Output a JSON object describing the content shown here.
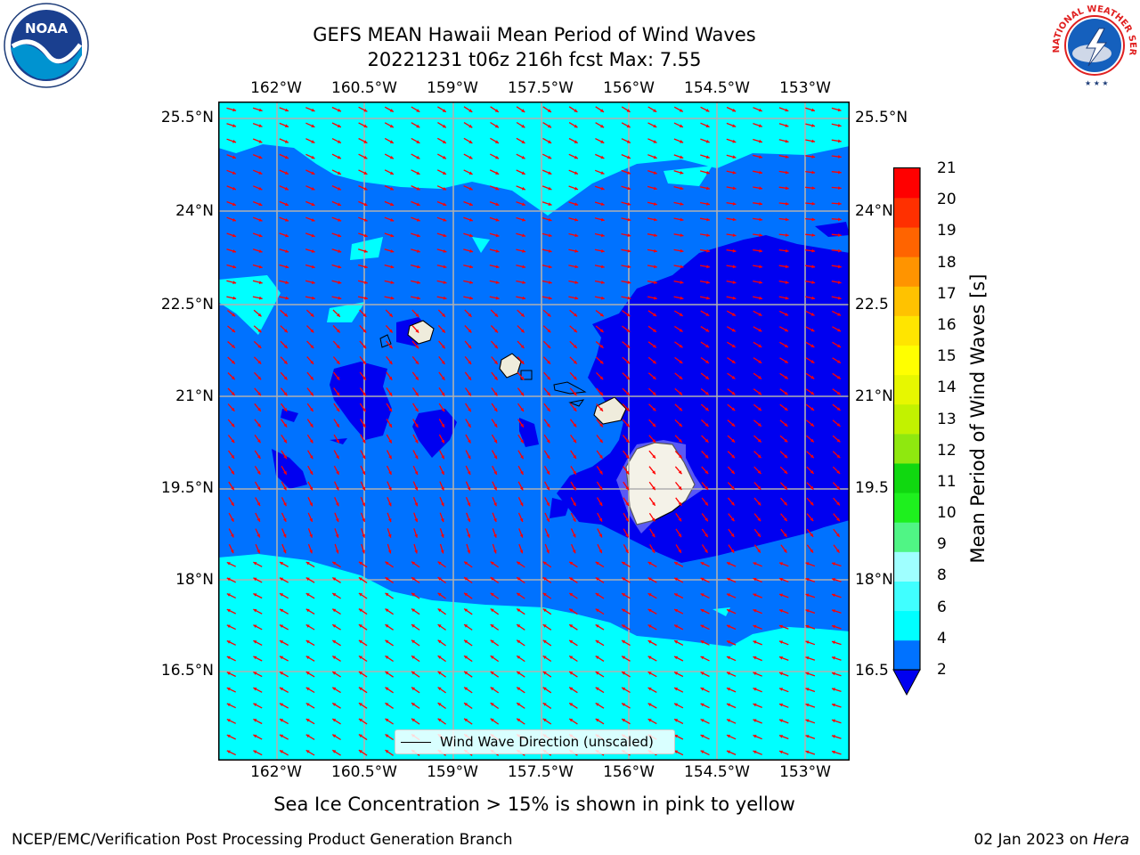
{
  "title": {
    "line1": "GEFS MEAN Hawaii Mean Period of Wind Waves",
    "line2": "20221231 t06z 216h fcst   Max: 7.55"
  },
  "map": {
    "lon_ticks": [
      "162°W",
      "160.5°W",
      "159°W",
      "157.5°W",
      "156°W",
      "154.5°W",
      "153°W"
    ],
    "lat_ticks_left": [
      "25.5°N",
      "24°N",
      "22.5°N",
      "21°N",
      "19.5°N",
      "18°N",
      "16.5°N"
    ],
    "lat_ticks_right": [
      "25.5°N",
      "24°N",
      "22.5",
      "21°N",
      "19.5",
      "18°N",
      "16.5"
    ],
    "legend_label": "Wind Wave Direction (unscaled)",
    "colors": {
      "level_2_4": "#0072ff",
      "level_lt_2": "#0000f0",
      "level_4_6": "#00ffff",
      "land": "#efecdc",
      "arrows": "#ff0000",
      "grid": "#b0b0b0"
    }
  },
  "colorbar": {
    "label": "Mean Period of Wind Waves [s]",
    "ticks": [
      "2",
      "4",
      "6",
      "8",
      "9",
      "10",
      "11",
      "12",
      "13",
      "14",
      "15",
      "16",
      "17",
      "18",
      "19",
      "20",
      "21"
    ],
    "colors": [
      "#0072ff",
      "#00ffff",
      "#40ffff",
      "#9fffff",
      "#50f585",
      "#1ef01e",
      "#10d810",
      "#8fe80f",
      "#c2f200",
      "#e7f700",
      "#ffff00",
      "#ffe500",
      "#ffc200",
      "#ff9400",
      "#ff6400",
      "#ff3000",
      "#ff0000"
    ],
    "under_color": "#0000f0"
  },
  "footnote": "Sea Ice Concentration > 15% is shown in pink to yellow",
  "credit_left": "NCEP/EMC/Verification Post Processing Product Generation Branch",
  "credit_right_date": "02 Jan 2023 on",
  "credit_right_host": "Hera",
  "logos": {
    "left": "NOAA",
    "right": "NATIONAL WEATHER SERVICE"
  }
}
